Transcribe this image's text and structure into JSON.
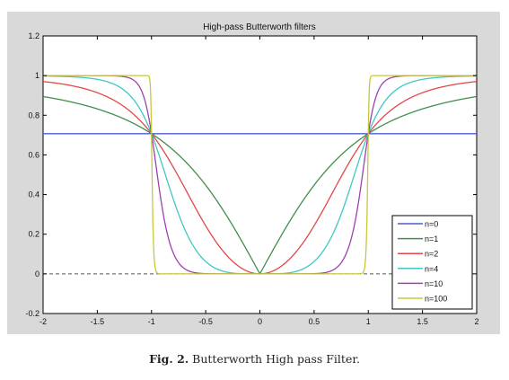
{
  "caption": {
    "label": "Fig. 2.",
    "text": "Butterworth High pass Filter."
  },
  "chart_data": {
    "type": "line",
    "title": "High-pass Butterworth filters",
    "xlabel": "",
    "ylabel": "",
    "xlim": [
      -2,
      2
    ],
    "ylim": [
      -0.2,
      1.2
    ],
    "xticks": [
      -2,
      -1.5,
      -1,
      -0.5,
      0,
      0.5,
      1,
      1.5,
      2
    ],
    "xtick_labels": [
      "-2",
      "-1.5",
      "-1",
      "-0.5",
      "0",
      "0.5",
      "1",
      "1.5",
      "2"
    ],
    "yticks": [
      -0.2,
      0,
      0.2,
      0.4,
      0.6,
      0.8,
      1,
      1.2
    ],
    "ytick_labels": [
      "-0.2",
      "0",
      "0.2",
      "0.4",
      "0.6",
      "0.8",
      "1",
      "1.2"
    ],
    "grid": false,
    "legend_position": "bottom-right",
    "reference_line": {
      "y": 0,
      "style": "dashed",
      "color": "#555555"
    },
    "formula": "1 / sqrt(1 + (1/x)^(2n))",
    "x": [
      -2,
      -1.9,
      -1.8,
      -1.7,
      -1.6,
      -1.5,
      -1.4,
      -1.3,
      -1.2,
      -1.1,
      -1,
      -0.9,
      -0.8,
      -0.7,
      -0.6,
      -0.5,
      -0.4,
      -0.3,
      -0.2,
      -0.1,
      0,
      0.1,
      0.2,
      0.3,
      0.4,
      0.5,
      0.6,
      0.7,
      0.8,
      0.9,
      1,
      1.1,
      1.2,
      1.3,
      1.4,
      1.5,
      1.6,
      1.7,
      1.8,
      1.9,
      2
    ],
    "series": [
      {
        "name": "n=0",
        "color": "#4a5fcf",
        "values": [
          0.707,
          0.707,
          0.707,
          0.707,
          0.707,
          0.707,
          0.707,
          0.707,
          0.707,
          0.707,
          0.707,
          0.707,
          0.707,
          0.707,
          0.707,
          0.707,
          0.707,
          0.707,
          0.707,
          0.707,
          0.707,
          0.707,
          0.707,
          0.707,
          0.707,
          0.707,
          0.707,
          0.707,
          0.707,
          0.707,
          0.707,
          0.707,
          0.707,
          0.707,
          0.707,
          0.707,
          0.707,
          0.707,
          0.707,
          0.707,
          0.707
        ]
      },
      {
        "name": "n=1",
        "color": "#3f8f4a",
        "values": [
          0.894,
          0.885,
          0.874,
          0.862,
          0.848,
          0.832,
          0.814,
          0.793,
          0.768,
          0.74,
          0.707,
          0.669,
          0.625,
          0.573,
          0.514,
          0.447,
          0.371,
          0.287,
          0.196,
          0.1,
          0.0,
          0.1,
          0.196,
          0.287,
          0.371,
          0.447,
          0.514,
          0.573,
          0.625,
          0.669,
          0.707,
          0.74,
          0.768,
          0.793,
          0.814,
          0.832,
          0.848,
          0.862,
          0.874,
          0.885,
          0.894
        ]
      },
      {
        "name": "n=2",
        "color": "#e04848",
        "values": [
          0.97,
          0.964,
          0.955,
          0.945,
          0.932,
          0.914,
          0.891,
          0.861,
          0.821,
          0.771,
          0.707,
          0.63,
          0.539,
          0.44,
          0.339,
          0.243,
          0.158,
          0.09,
          0.04,
          0.01,
          0.0,
          0.01,
          0.04,
          0.09,
          0.158,
          0.243,
          0.339,
          0.44,
          0.539,
          0.63,
          0.707,
          0.771,
          0.821,
          0.861,
          0.891,
          0.914,
          0.932,
          0.945,
          0.955,
          0.964,
          0.97
        ]
      },
      {
        "name": "n=4",
        "color": "#3ec7c7",
        "values": [
          0.998,
          0.997,
          0.995,
          0.993,
          0.989,
          0.981,
          0.967,
          0.943,
          0.9,
          0.826,
          0.707,
          0.549,
          0.379,
          0.233,
          0.128,
          0.062,
          0.026,
          0.008,
          0.002,
          0.0,
          0.0,
          0.0,
          0.002,
          0.008,
          0.026,
          0.062,
          0.128,
          0.233,
          0.379,
          0.549,
          0.707,
          0.826,
          0.9,
          0.943,
          0.967,
          0.981,
          0.989,
          0.993,
          0.995,
          0.997,
          0.998
        ]
      },
      {
        "name": "n=10",
        "color": "#a040b0",
        "values": [
          1.0,
          1.0,
          1.0,
          1.0,
          1.0,
          1.0,
          1.0,
          0.999,
          0.992,
          0.938,
          0.707,
          0.328,
          0.107,
          0.028,
          0.006,
          0.001,
          0.0,
          0.0,
          0.0,
          0.0,
          0.0,
          0.0,
          0.0,
          0.0,
          0.0,
          0.001,
          0.006,
          0.028,
          0.107,
          0.328,
          0.707,
          0.938,
          0.992,
          0.999,
          1.0,
          1.0,
          1.0,
          1.0,
          1.0,
          1.0,
          1.0
        ]
      },
      {
        "name": "n=100",
        "color": "#c8c83c",
        "values": [
          1.0,
          1.0,
          1.0,
          1.0,
          1.0,
          1.0,
          1.0,
          1.0,
          1.0,
          1.0,
          0.707,
          0.0,
          0.0,
          0.0,
          0.0,
          0.0,
          0.0,
          0.0,
          0.0,
          0.0,
          0.0,
          0.0,
          0.0,
          0.0,
          0.0,
          0.0,
          0.0,
          0.0,
          0.0,
          0.0,
          0.707,
          1.0,
          1.0,
          1.0,
          1.0,
          1.0,
          1.0,
          1.0,
          1.0,
          1.0,
          1.0
        ]
      }
    ]
  }
}
